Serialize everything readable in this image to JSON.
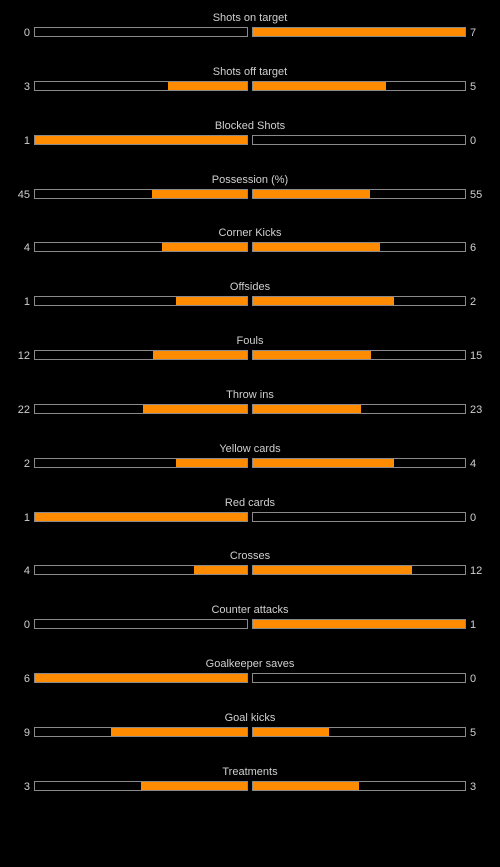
{
  "colors": {
    "fill": "#ff8c00",
    "track_border": "#8a8a8a",
    "text": "#d0d0d0",
    "background": "#000000"
  },
  "stats": [
    {
      "label": "Shots on target",
      "home": "0",
      "away": "7",
      "home_fill": 0.0,
      "away_fill": 1.0
    },
    {
      "label": "Shots off target",
      "home": "3",
      "away": "5",
      "home_fill": 0.375,
      "away_fill": 0.625
    },
    {
      "label": "Blocked Shots",
      "home": "1",
      "away": "0",
      "home_fill": 1.0,
      "away_fill": 0.0
    },
    {
      "label": "Possession (%)",
      "home": "45",
      "away": "55",
      "home_fill": 0.45,
      "away_fill": 0.55
    },
    {
      "label": "Corner Kicks",
      "home": "4",
      "away": "6",
      "home_fill": 0.4,
      "away_fill": 0.6
    },
    {
      "label": "Offsides",
      "home": "1",
      "away": "2",
      "home_fill": 0.333,
      "away_fill": 0.667
    },
    {
      "label": "Fouls",
      "home": "12",
      "away": "15",
      "home_fill": 0.444,
      "away_fill": 0.556
    },
    {
      "label": "Throw ins",
      "home": "22",
      "away": "23",
      "home_fill": 0.489,
      "away_fill": 0.511
    },
    {
      "label": "Yellow cards",
      "home": "2",
      "away": "4",
      "home_fill": 0.333,
      "away_fill": 0.667
    },
    {
      "label": "Red cards",
      "home": "1",
      "away": "0",
      "home_fill": 1.0,
      "away_fill": 0.0
    },
    {
      "label": "Crosses",
      "home": "4",
      "away": "12",
      "home_fill": 0.25,
      "away_fill": 0.75
    },
    {
      "label": "Counter attacks",
      "home": "0",
      "away": "1",
      "home_fill": 0.0,
      "away_fill": 1.0
    },
    {
      "label": "Goalkeeper saves",
      "home": "6",
      "away": "0",
      "home_fill": 1.0,
      "away_fill": 0.0
    },
    {
      "label": "Goal kicks",
      "home": "9",
      "away": "5",
      "home_fill": 0.643,
      "away_fill": 0.357
    },
    {
      "label": "Treatments",
      "home": "3",
      "away": "3",
      "home_fill": 0.5,
      "away_fill": 0.5
    }
  ]
}
